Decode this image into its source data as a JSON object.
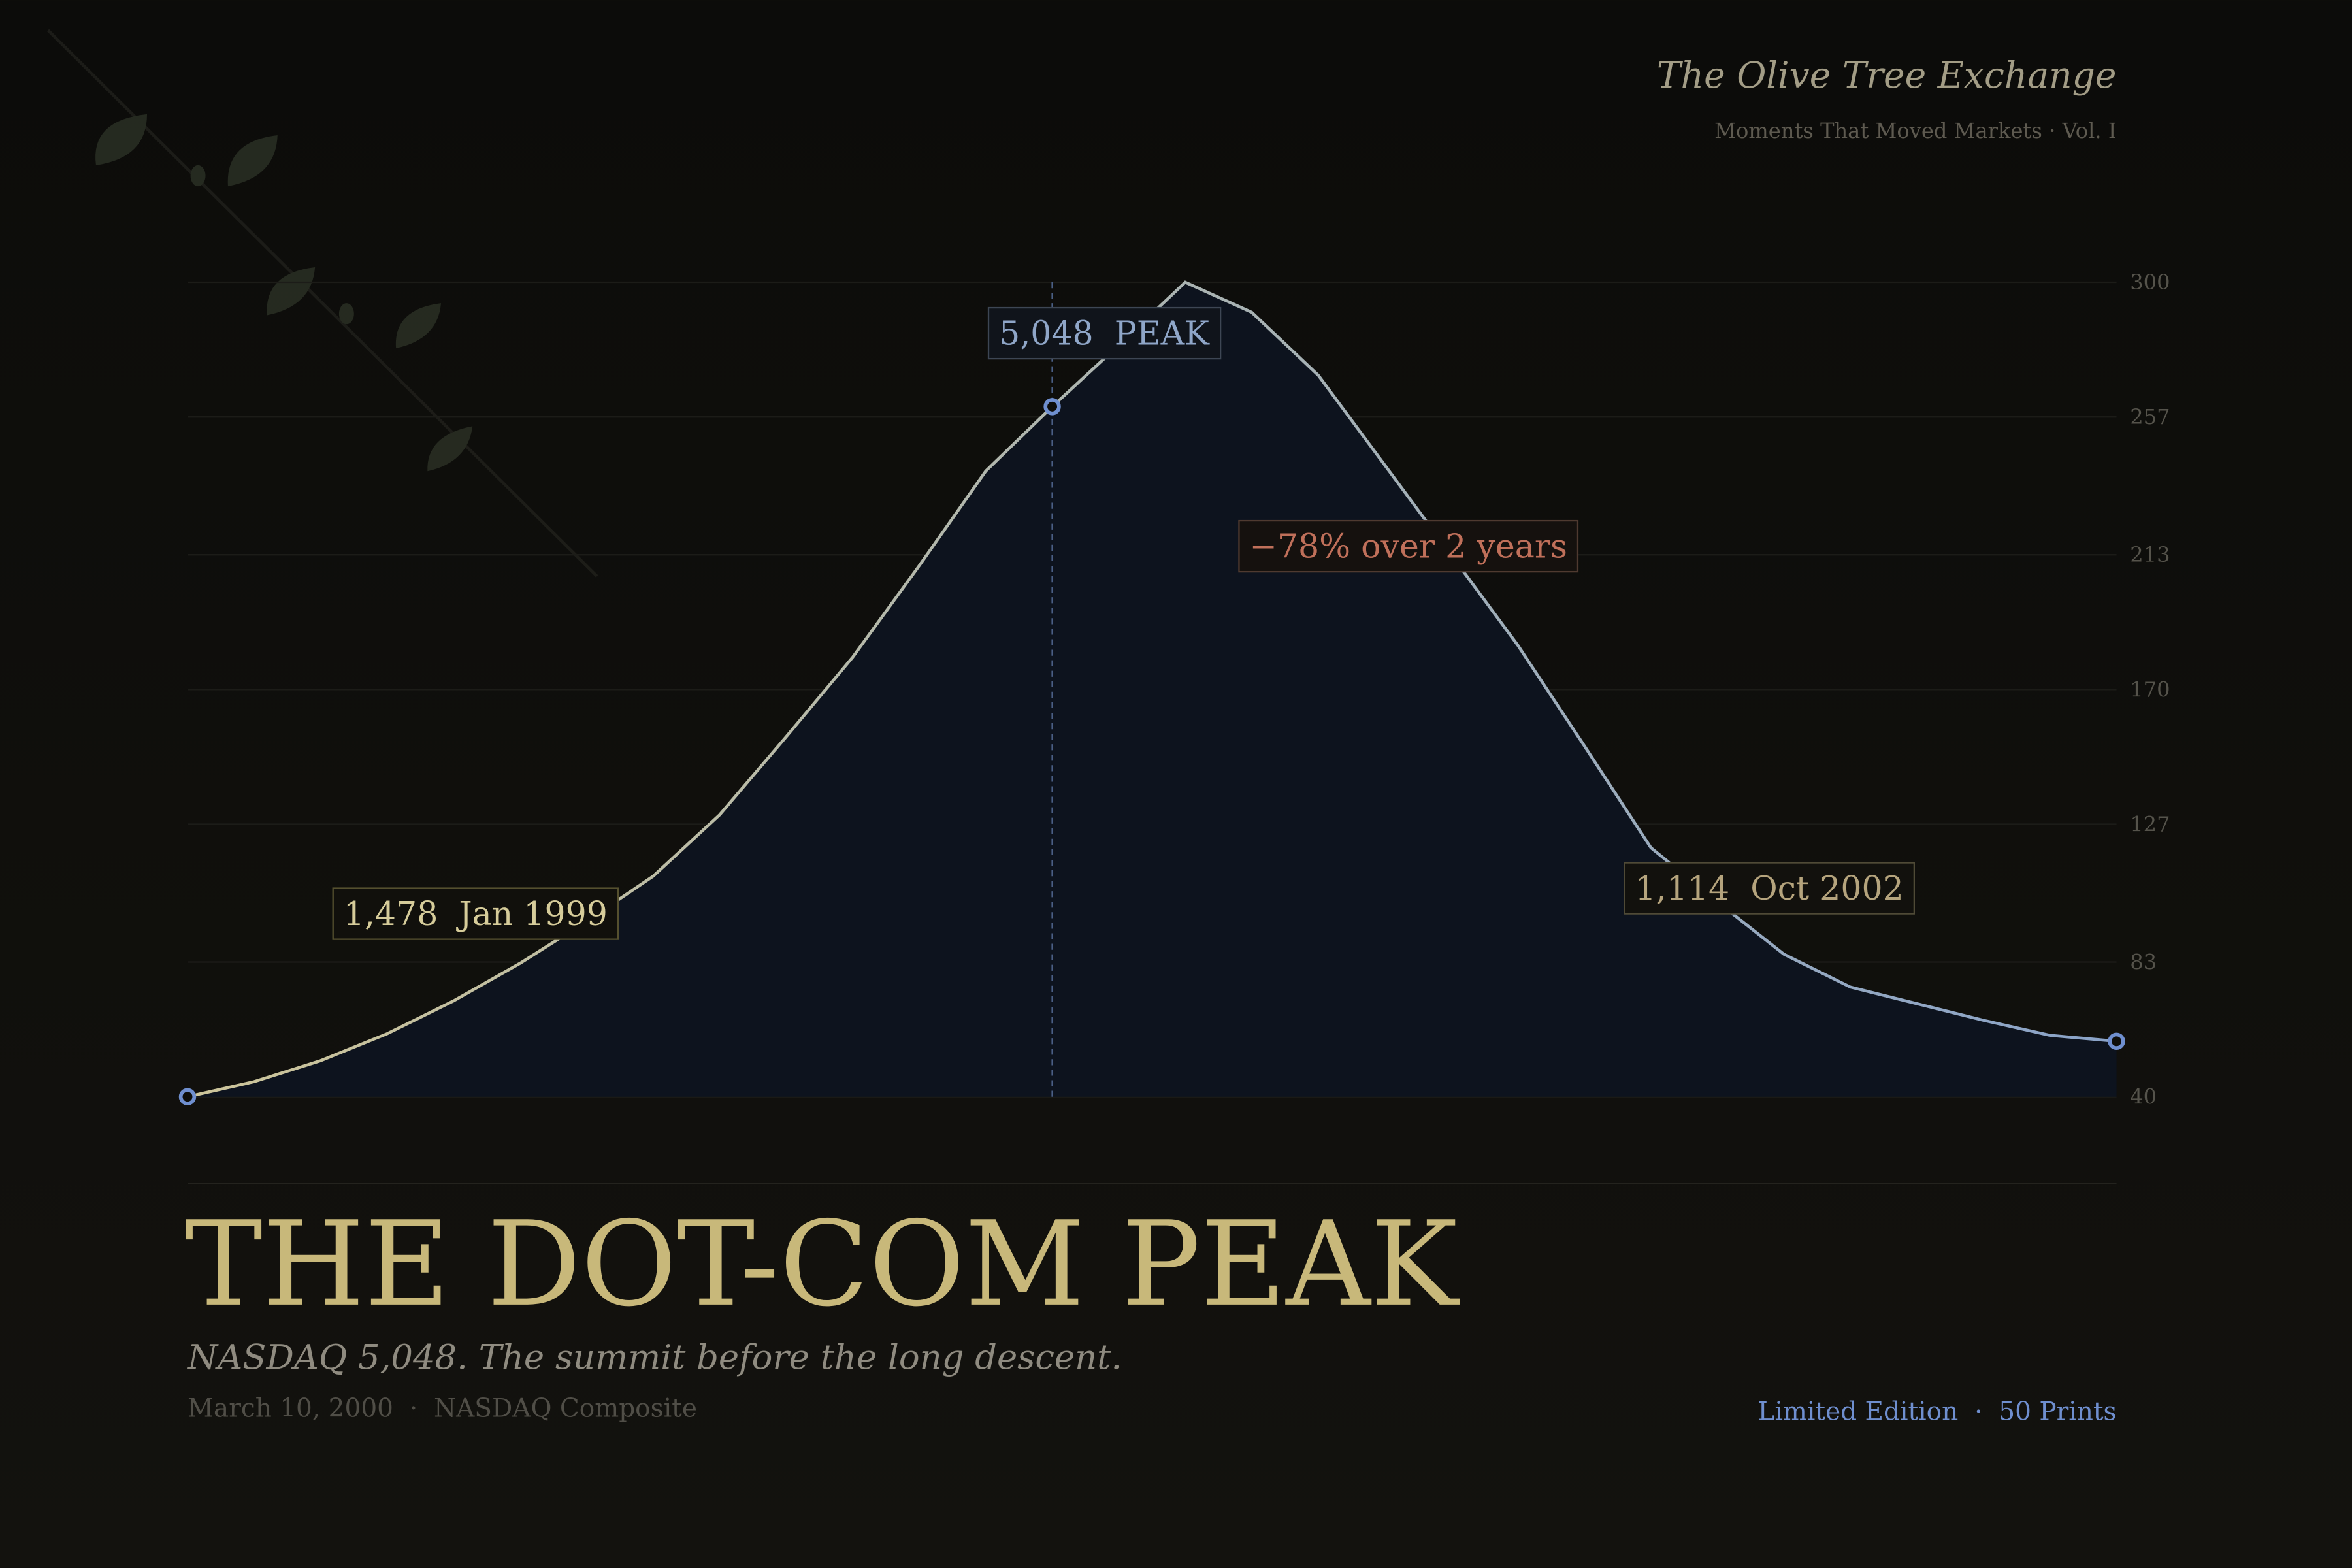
{
  "header": {
    "brand": "The Olive Tree Exchange",
    "series_name": "Moments That Moved Markets · Vol. I"
  },
  "chart_data": {
    "type": "area-line",
    "values": [
      40,
      44.8,
      51.5,
      60.1,
      70.6,
      82.6,
      96.0,
      110.4,
      130.0,
      154.9,
      180.3,
      209.5,
      239.7,
      260.3,
      279.9,
      300,
      290.4,
      270.3,
      241.6,
      212.9,
      184.1,
      152.0,
      119.5,
      102.2,
      85.5,
      75.0,
      69.7,
      64.4,
      59.6,
      57.7
    ],
    "line_colors": [
      "#cdc59a",
      "#8aa3c8"
    ],
    "fill_color": "#0d131e",
    "marker_color": "#6f8fcf",
    "markers": [
      0,
      13,
      29
    ],
    "ylim": [
      40,
      300
    ],
    "yticks": [
      40,
      83,
      127,
      170,
      213,
      257,
      300
    ],
    "grid": true,
    "annotations": [
      "5,048  PEAK",
      "−78% over 2 years",
      "1,478  Jan 1999",
      "1,114  Oct 2002"
    ]
  },
  "footer": {
    "title": "THE DOT-COM PEAK",
    "subtitle": "NASDAQ 5,048. The summit before the long descent.",
    "date_line": "March 10, 2000  ·  NASDAQ Composite",
    "edition": "Limited Edition  ·  50 Prints"
  }
}
